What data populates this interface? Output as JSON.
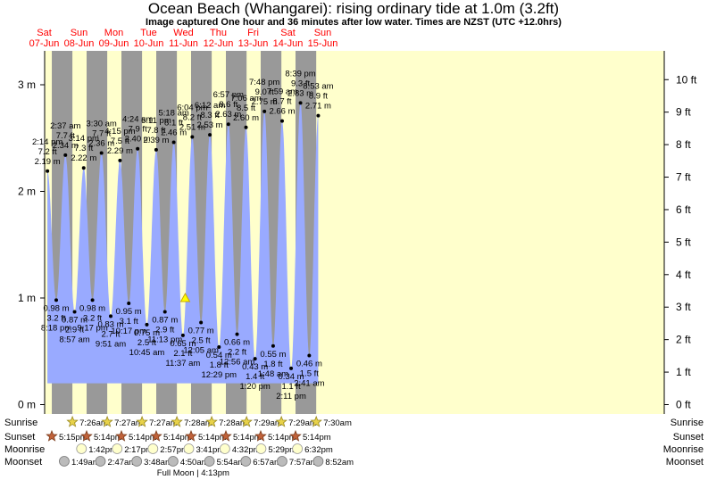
{
  "title": "Ocean Beach (Whangarei): rising  ordinary tide at 1.0m (3.2ft)",
  "subtitle": "Image captured One hour and 36 minutes after low water. Times are NZST (UTC +12.0hrs)",
  "colors": {
    "day": "#ffffcc",
    "night": "#999999",
    "water": "#99aaff",
    "dayText": "#ff0000"
  },
  "chart_data": {
    "type": "area",
    "y_unit_left": "m",
    "y_unit_right": "ft",
    "ylim_m": [
      -0.1,
      3.3
    ],
    "left_ticks": [
      {
        "v": 0,
        "label": "0 m"
      },
      {
        "v": 1,
        "label": "1 m"
      },
      {
        "v": 2,
        "label": "2 m"
      },
      {
        "v": 3,
        "label": "3 m"
      }
    ],
    "right_ticks": [
      {
        "v": 0,
        "label": "0 ft"
      },
      {
        "v": 1,
        "label": "1 ft"
      },
      {
        "v": 2,
        "label": "2 ft"
      },
      {
        "v": 3,
        "label": "3 ft"
      },
      {
        "v": 4,
        "label": "4 ft"
      },
      {
        "v": 5,
        "label": "5 ft"
      },
      {
        "v": 6,
        "label": "6 ft"
      },
      {
        "v": 7,
        "label": "7 ft"
      },
      {
        "v": 8,
        "label": "8 ft"
      },
      {
        "v": 9,
        "label": "9 ft"
      },
      {
        "v": 10,
        "label": "10 ft"
      }
    ],
    "days": [
      {
        "d": "Sat",
        "date": "07-Jun"
      },
      {
        "d": "Sun",
        "date": "08-Jun"
      },
      {
        "d": "Mon",
        "date": "09-Jun"
      },
      {
        "d": "Tue",
        "date": "10-Jun"
      },
      {
        "d": "Wed",
        "date": "11-Jun"
      },
      {
        "d": "Thu",
        "date": "12-Jun"
      },
      {
        "d": "Fri",
        "date": "13-Jun"
      },
      {
        "d": "Sat",
        "date": "14-Jun"
      },
      {
        "d": "Sun",
        "date": "15-Jun"
      }
    ],
    "tides": [
      {
        "t": "2025-06-07T14:14",
        "h": 2.19,
        "time": "2:14 pm",
        "ft": "7.2 ft",
        "m": "2.19 m",
        "type": "high"
      },
      {
        "t": "2025-06-07T20:18",
        "h": 0.98,
        "time": "8:18 pm",
        "ft": "3.2 ft",
        "m": "0.98 m",
        "type": "low"
      },
      {
        "t": "2025-06-08T02:37",
        "h": 2.34,
        "time": "2:37 am",
        "ft": "7.7 ft",
        "m": "2.34 m",
        "type": "high"
      },
      {
        "t": "2025-06-08T08:57",
        "h": 0.87,
        "time": "8:57 am",
        "ft": "2.9 ft",
        "m": "0.87 m",
        "type": "low"
      },
      {
        "t": "2025-06-08T15:14",
        "h": 2.22,
        "time": "3:14 pm",
        "ft": "7.3 ft",
        "m": "2.22 m",
        "type": "high"
      },
      {
        "t": "2025-06-08T21:17",
        "h": 0.98,
        "time": "9:17 pm",
        "ft": "3.2 ft",
        "m": "0.98 m",
        "type": "low"
      },
      {
        "t": "2025-06-09T03:30",
        "h": 2.36,
        "time": "3:30 am",
        "ft": "7.7 ft",
        "m": "2.36 m",
        "type": "high"
      },
      {
        "t": "2025-06-09T09:51",
        "h": 0.83,
        "time": "9:51 am",
        "ft": "2.7 ft",
        "m": "0.83 m",
        "type": "low"
      },
      {
        "t": "2025-06-09T16:15",
        "h": 2.29,
        "time": "4:15 pm",
        "ft": "7.5 ft",
        "m": "2.29 m",
        "type": "high"
      },
      {
        "t": "2025-06-09T22:17",
        "h": 0.95,
        "time": "10:17 pm",
        "ft": "3.1 ft",
        "m": "0.95 m",
        "type": "low"
      },
      {
        "t": "2025-06-10T04:24",
        "h": 2.4,
        "time": "4:24 am",
        "ft": "7.9 ft",
        "m": "2.40 m",
        "type": "high"
      },
      {
        "t": "2025-06-10T10:45",
        "h": 0.75,
        "time": "10:45 am",
        "ft": "2.5 ft",
        "m": "0.75 m",
        "type": "low"
      },
      {
        "t": "2025-06-10T17:11",
        "h": 2.39,
        "time": "5:11 pm",
        "ft": "7.8 ft",
        "m": "2.39 m",
        "type": "high"
      },
      {
        "t": "2025-06-10T23:13",
        "h": 0.87,
        "time": "11:13 pm",
        "ft": "2.9 ft",
        "m": "0.87 m",
        "type": "low"
      },
      {
        "t": "2025-06-11T05:18",
        "h": 2.46,
        "time": "5:18 am",
        "ft": "8.1 ft",
        "m": "2.46 m",
        "type": "high"
      },
      {
        "t": "2025-06-11T11:37",
        "h": 0.65,
        "time": "11:37 am",
        "ft": "2.1 ft",
        "m": "0.65 m",
        "type": "low"
      },
      {
        "t": "2025-06-11T18:04",
        "h": 2.51,
        "time": "6:04 pm",
        "ft": "8.2 ft",
        "m": "2.51 m",
        "type": "high"
      },
      {
        "t": "2025-06-12T00:05",
        "h": 0.77,
        "time": "12:05 am",
        "ft": "2.5 ft",
        "m": "0.77 m",
        "type": "low"
      },
      {
        "t": "2025-06-12T06:12",
        "h": 2.53,
        "time": "6:12 am",
        "ft": "8.3 ft",
        "m": "2.53 m",
        "type": "high"
      },
      {
        "t": "2025-06-12T12:29",
        "h": 0.54,
        "time": "12:29 pm",
        "ft": "1.8 ft",
        "m": "0.54 m",
        "type": "low"
      },
      {
        "t": "2025-06-12T18:57",
        "h": 2.63,
        "time": "6:57 pm",
        "ft": "8.6 ft",
        "m": "2.63 m",
        "type": "high"
      },
      {
        "t": "2025-06-13T00:56",
        "h": 0.66,
        "time": "12:56 am",
        "ft": "2.2 ft",
        "m": "0.66 m",
        "type": "low"
      },
      {
        "t": "2025-06-13T07:06",
        "h": 2.6,
        "time": "7:06 am",
        "ft": "8.5 ft",
        "m": "2.60 m",
        "type": "high"
      },
      {
        "t": "2025-06-13T13:20",
        "h": 0.43,
        "time": "1:20 pm",
        "ft": "1.4 ft",
        "m": "0.43 m",
        "type": "low"
      },
      {
        "t": "2025-06-13T19:48",
        "h": 2.75,
        "time": "7:48 pm",
        "ft": "9.0 ft",
        "m": "2.75 m",
        "type": "high"
      },
      {
        "t": "2025-06-14T01:48",
        "h": 0.55,
        "time": "1:48 am",
        "ft": "1.8 ft",
        "m": "0.55 m",
        "type": "low"
      },
      {
        "t": "2025-06-14T07:59",
        "h": 2.66,
        "time": "7:59 am",
        "ft": "8.7 ft",
        "m": "2.66 m",
        "type": "high"
      },
      {
        "t": "2025-06-14T14:11",
        "h": 0.34,
        "time": "2:11 pm",
        "ft": "1.1 ft",
        "m": "0.34 m",
        "type": "low"
      },
      {
        "t": "2025-06-14T20:39",
        "h": 2.83,
        "time": "8:39 pm",
        "ft": "9.3 ft",
        "m": "2.83 m",
        "type": "high"
      },
      {
        "t": "2025-06-15T02:41",
        "h": 0.46,
        "time": "2:41 am",
        "ft": "1.5 ft",
        "m": "0.46 m",
        "type": "low"
      },
      {
        "t": "2025-06-15T08:53",
        "h": 2.71,
        "time": "8:53 am",
        "ft": "8.9 ft",
        "m": "2.71 m",
        "type": "high"
      }
    ],
    "current": {
      "t": "2025-06-11T13:13",
      "h": 1.0
    },
    "sunrise": [
      {
        "t": "2025-06-08T07:26",
        "label": "7:26am"
      },
      {
        "t": "2025-06-09T07:27",
        "label": "7:27am"
      },
      {
        "t": "2025-06-10T07:27",
        "label": "7:27am"
      },
      {
        "t": "2025-06-11T07:28",
        "label": "7:28am"
      },
      {
        "t": "2025-06-12T07:28",
        "label": "7:28am"
      },
      {
        "t": "2025-06-13T07:29",
        "label": "7:29am"
      },
      {
        "t": "2025-06-14T07:29",
        "label": "7:29am"
      },
      {
        "t": "2025-06-15T07:30",
        "label": "7:30am"
      }
    ],
    "sunset": [
      {
        "t": "2025-06-07T17:15",
        "label": "5:15pm"
      },
      {
        "t": "2025-06-08T17:14",
        "label": "5:14pm"
      },
      {
        "t": "2025-06-09T17:14",
        "label": "5:14pm"
      },
      {
        "t": "2025-06-10T17:14",
        "label": "5:14pm"
      },
      {
        "t": "2025-06-11T17:14",
        "label": "5:14pm"
      },
      {
        "t": "2025-06-12T17:14",
        "label": "5:14pm"
      },
      {
        "t": "2025-06-13T17:14",
        "label": "5:14pm"
      },
      {
        "t": "2025-06-14T17:14",
        "label": "5:14pm"
      }
    ],
    "moonrise": [
      {
        "t": "2025-06-08T13:42",
        "label": "1:42pm"
      },
      {
        "t": "2025-06-09T14:17",
        "label": "2:17pm"
      },
      {
        "t": "2025-06-10T14:57",
        "label": "2:57pm"
      },
      {
        "t": "2025-06-11T15:41",
        "label": "3:41pm"
      },
      {
        "t": "2025-06-12T16:32",
        "label": "4:32pm"
      },
      {
        "t": "2025-06-13T17:29",
        "label": "5:29pm"
      },
      {
        "t": "2025-06-14T18:32",
        "label": "6:32pm"
      }
    ],
    "moonset": [
      {
        "t": "2025-06-08T01:49",
        "label": "1:49am"
      },
      {
        "t": "2025-06-09T02:47",
        "label": "2:47am"
      },
      {
        "t": "2025-06-10T03:48",
        "label": "3:48am"
      },
      {
        "t": "2025-06-11T04:50",
        "label": "4:50am"
      },
      {
        "t": "2025-06-12T05:54",
        "label": "5:54am"
      },
      {
        "t": "2025-06-13T06:57",
        "label": "6:57am"
      },
      {
        "t": "2025-06-14T07:57",
        "label": "7:57am"
      },
      {
        "t": "2025-06-15T08:52",
        "label": "8:52am"
      }
    ],
    "full_moon": {
      "t": "2025-06-11T16:13",
      "label": "Full Moon | 4:13pm"
    },
    "row_labels": {
      "sunrise": "Sunrise",
      "sunset": "Sunset",
      "moonrise": "Moonrise",
      "moonset": "Moonset"
    }
  }
}
